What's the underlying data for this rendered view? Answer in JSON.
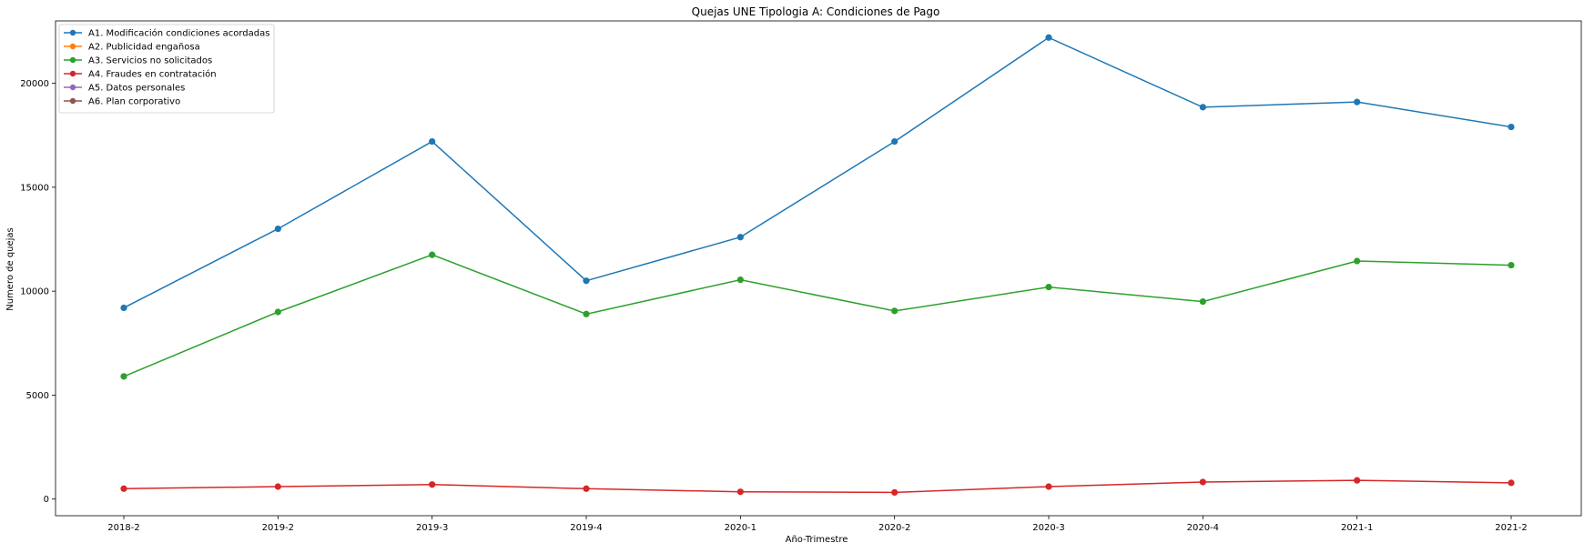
{
  "chart_data": {
    "type": "line",
    "title": "Quejas UNE Tipologia A: Condiciones de Pago",
    "xlabel": "Año-Trimestre",
    "ylabel": "Numero de quejas",
    "categories": [
      "2018-2",
      "2019-2",
      "2019-3",
      "2019-4",
      "2020-1",
      "2020-2",
      "2020-3",
      "2020-4",
      "2021-1",
      "2021-2"
    ],
    "ylim": [
      -800,
      23000
    ],
    "yticks": [
      0,
      5000,
      10000,
      15000,
      20000
    ],
    "grid": false,
    "legend_position": "top-left",
    "series": [
      {
        "name": "A1. Modificación condiciones acordadas",
        "color": "#1f77b4",
        "values": [
          9200,
          13000,
          17200,
          10500,
          12600,
          17200,
          22200,
          18850,
          19100,
          17900
        ]
      },
      {
        "name": "A2. Publicidad engañosa",
        "color": "#ff7f0e",
        "values": [
          null,
          null,
          null,
          null,
          null,
          null,
          null,
          null,
          null,
          null
        ]
      },
      {
        "name": "A3. Servicios no solicitados",
        "color": "#2ca02c",
        "values": [
          5900,
          9000,
          11750,
          8900,
          10550,
          9050,
          10200,
          9500,
          11450,
          11250
        ]
      },
      {
        "name": "A4. Fraudes en contratación",
        "color": "#d62728",
        "values": [
          500,
          600,
          700,
          500,
          350,
          320,
          600,
          820,
          900,
          780
        ]
      },
      {
        "name": "A5. Datos personales",
        "color": "#9467bd",
        "values": [
          null,
          null,
          null,
          null,
          null,
          null,
          null,
          null,
          null,
          null
        ]
      },
      {
        "name": "A6. Plan corporativo",
        "color": "#8c564b",
        "values": [
          null,
          null,
          null,
          null,
          null,
          null,
          null,
          null,
          null,
          null
        ]
      }
    ]
  }
}
